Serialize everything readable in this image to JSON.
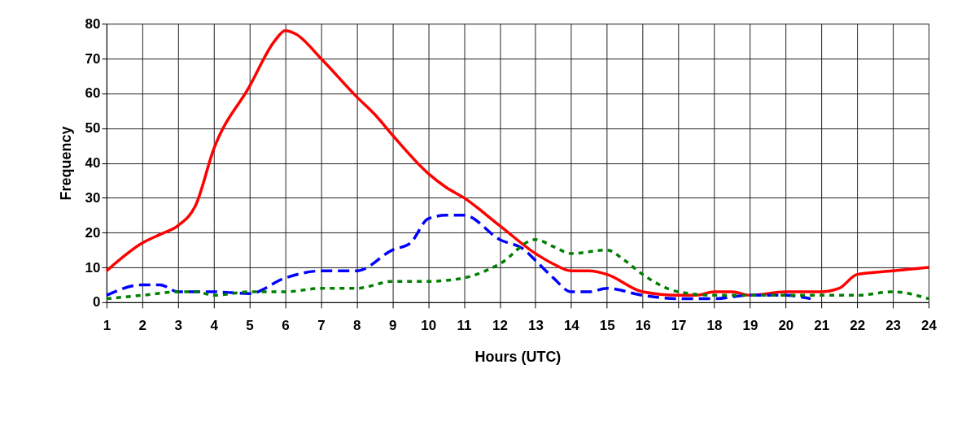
{
  "chart_data": {
    "type": "line",
    "xlabel": "Hours (UTC)",
    "ylabel": "Frequency",
    "xlim": [
      1,
      24
    ],
    "xticks": [
      1,
      2,
      3,
      4,
      5,
      6,
      7,
      8,
      9,
      10,
      11,
      12,
      13,
      14,
      15,
      16,
      17,
      18,
      19,
      20,
      21,
      22,
      23,
      24
    ],
    "ylim": [
      0,
      80
    ],
    "yticks": [
      0,
      10,
      20,
      30,
      40,
      50,
      60,
      70,
      80
    ],
    "grid": true,
    "marker": "none",
    "series": [
      {
        "color": "#ff0000",
        "line_style": "solid",
        "x": [
          1,
          2,
          2.5,
          3,
          3.5,
          4,
          5,
          5.7,
          6,
          6.3,
          7,
          8,
          8.5,
          9,
          10,
          10.5,
          11,
          12,
          13,
          13.5,
          14,
          14.5,
          15,
          16,
          17,
          17.5,
          18,
          18.5,
          19,
          20,
          20.5,
          21,
          21.5,
          22,
          23,
          24
        ],
        "values": [
          9,
          17,
          19.5,
          22,
          28,
          44,
          62,
          75,
          78,
          77,
          70,
          59,
          54,
          48,
          37,
          33,
          30,
          22,
          14,
          11,
          9,
          9,
          8,
          3,
          2,
          2,
          3,
          3,
          2,
          3,
          3,
          3,
          4,
          8,
          9,
          10
        ]
      },
      {
        "color": "#0000ff",
        "line_style": "dashed",
        "x": [
          1,
          2,
          2.5,
          3,
          4,
          5,
          6,
          7,
          8,
          9,
          9.5,
          10,
          10.5,
          11,
          12,
          12.7,
          13,
          13.5,
          14,
          14.5,
          15,
          16,
          17,
          18,
          19,
          20,
          20.7
        ],
        "values": [
          2,
          5,
          5,
          3,
          3,
          2.5,
          7,
          9,
          9,
          15,
          17,
          24,
          25,
          25,
          18,
          15,
          12,
          7,
          3,
          3,
          4,
          2,
          1,
          1,
          2,
          2,
          1
        ]
      },
      {
        "color": "#008000",
        "line_style": "dotted",
        "x": [
          1,
          2,
          3,
          3.5,
          4,
          5,
          6,
          7,
          8,
          9,
          10,
          11,
          12,
          13,
          13.5,
          14,
          15,
          15.5,
          16,
          17,
          18,
          19,
          20,
          21,
          22,
          23,
          24
        ],
        "values": [
          1,
          2,
          3,
          3,
          2,
          3,
          3,
          4,
          4,
          6,
          6,
          7,
          11,
          18,
          16,
          14,
          15,
          12,
          8,
          3,
          2,
          2,
          2,
          2,
          2,
          3,
          1
        ]
      }
    ]
  }
}
